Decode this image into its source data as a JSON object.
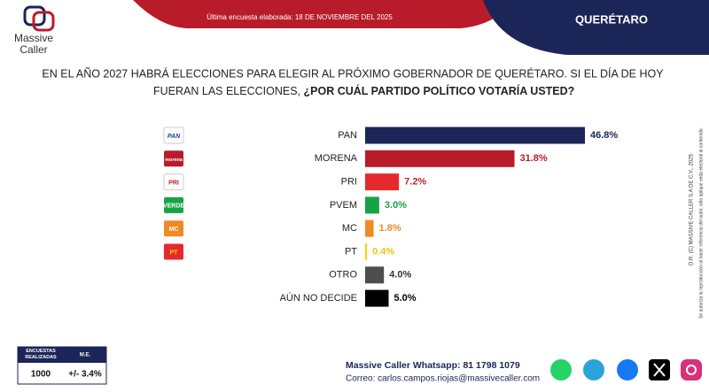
{
  "header": {
    "logo_top": "Massive",
    "logo_bottom": "Caller",
    "survey_date": "Última encuesta elaborada: 18 DE NOVIEMBRE DEL 2025",
    "region": "QUERÉTARO"
  },
  "question": {
    "line1": "EN EL AÑO 2027 HABRÁ ELECCIONES PARA ELEGIR AL PRÓXIMO GOBERNADOR DE QUERÉTARO. SI EL DÍA DE HOY",
    "line2_plain": "FUERAN LAS ELECCIONES, ",
    "line2_bold": "¿POR CUÁL PARTIDO POLÍTICO VOTARÍA USTED?"
  },
  "chart_data": {
    "type": "bar",
    "orientation": "horizontal",
    "categories": [
      "PAN",
      "MORENA",
      "PRI",
      "PVEM",
      "MC",
      "PT",
      "OTRO",
      "AÚN NO DECIDE"
    ],
    "values": [
      46.8,
      31.8,
      7.2,
      3.0,
      1.8,
      0.4,
      4.0,
      5.0
    ],
    "value_labels": [
      "46.8%",
      "31.8%",
      "7.2%",
      "3.0%",
      "1.8%",
      "0.4%",
      "4.0%",
      "5.0%"
    ],
    "colors": [
      "#1c2557",
      "#b81c2a",
      "#e52a2d",
      "#17a345",
      "#f08a24",
      "#f4d21f",
      "#4d4d4d",
      "#000000"
    ],
    "label_colors": [
      "#1c2557",
      "#b81c2a",
      "#c8202f",
      "#17a345",
      "#f08a24",
      "#e8c51a",
      "#333333",
      "#000000"
    ]
  },
  "party_icons": [
    "PAN",
    "morena",
    "PRI",
    "VERDE",
    "MC",
    "PT"
  ],
  "side_notes": [
    "D.R. (C) MASSIVE CALLER S.A DE C.V., 2025",
    "Se autoriza la reproducción al hacer referencia del autor, sólo aplique veda electoral al contenido."
  ],
  "footer": {
    "table_headers": [
      "ENCUESTAS REALIZADAS",
      "M.E."
    ],
    "table_values": [
      "1000",
      "+/- 3.4%"
    ],
    "whatsapp": "Massive Caller Whatsapp: 81 1798 1079",
    "email": "Correo: carlos.campos.riojas@massivecaller.com"
  }
}
